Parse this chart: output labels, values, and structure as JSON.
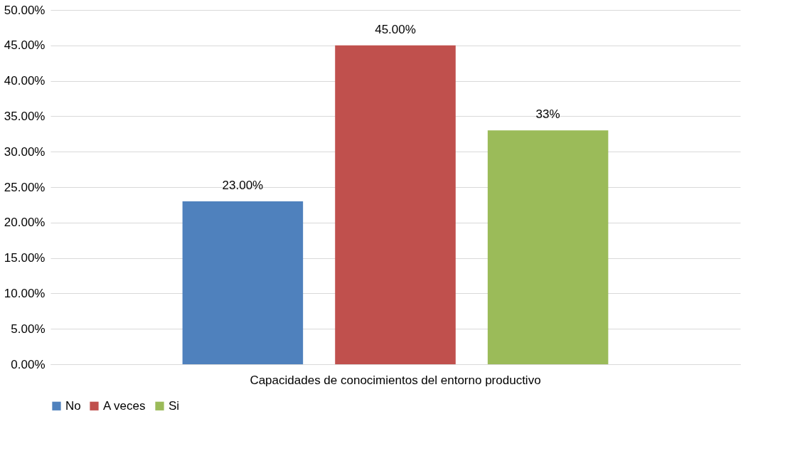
{
  "chart_data": {
    "type": "bar",
    "categories": [
      "Capacidades de conocimientos del entorno productivo"
    ],
    "series": [
      {
        "name": "No",
        "color": "#4f81bd",
        "values": [
          23
        ],
        "value_labels": [
          "23.00%"
        ]
      },
      {
        "name": "A veces",
        "color": "#c0504d",
        "values": [
          45
        ],
        "value_labels": [
          "45.00%"
        ]
      },
      {
        "name": "Si",
        "color": "#9bbb59",
        "values": [
          33
        ],
        "value_labels": [
          "33%"
        ]
      }
    ],
    "ylim": [
      0,
      50
    ],
    "yticks": [
      {
        "value": 0,
        "label": "0.00%"
      },
      {
        "value": 5,
        "label": "5.00%"
      },
      {
        "value": 10,
        "label": "10.00%"
      },
      {
        "value": 15,
        "label": "15.00%"
      },
      {
        "value": 20,
        "label": "20.00%"
      },
      {
        "value": 25,
        "label": "25.00%"
      },
      {
        "value": 30,
        "label": "30.00%"
      },
      {
        "value": 35,
        "label": "35.00%"
      },
      {
        "value": 40,
        "label": "40.00%"
      },
      {
        "value": 45,
        "label": "45.00%"
      },
      {
        "value": 50,
        "label": "50.00%"
      }
    ],
    "grid": "y",
    "legend": "bottom"
  }
}
